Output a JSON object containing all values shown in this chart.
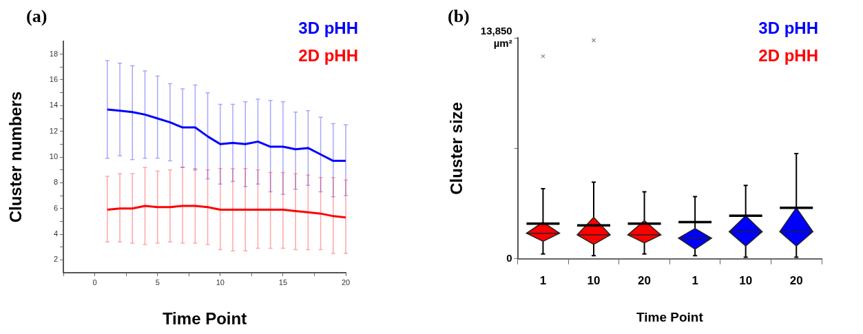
{
  "chart_data": [
    {
      "type": "line",
      "title": "(a)",
      "xlabel": "Time Point",
      "ylabel": "Cluster numbers",
      "x": [
        1,
        2,
        3,
        4,
        5,
        6,
        7,
        8,
        9,
        10,
        11,
        12,
        13,
        14,
        15,
        16,
        17,
        18,
        19,
        20
      ],
      "xlim": [
        -2.5,
        20
      ],
      "xticks": [
        {
          "value": -2.5,
          "label": null
        },
        0,
        {
          "value": 2.5,
          "label": null
        },
        5,
        {
          "value": 7.5,
          "label": null
        },
        10,
        {
          "value": 12.5,
          "label": null
        },
        15,
        {
          "value": 17.5,
          "label": null
        },
        20
      ],
      "ylim": [
        1,
        19
      ],
      "yticks": [
        2,
        {
          "value": 3,
          "label": null
        },
        4,
        {
          "value": 5,
          "label": null
        },
        6,
        {
          "value": 7,
          "label": null
        },
        8,
        {
          "value": 9,
          "label": null
        },
        10,
        {
          "value": 11,
          "label": null
        },
        12,
        {
          "value": 13,
          "label": null
        },
        14,
        {
          "value": 15,
          "label": null
        },
        16,
        {
          "value": 17,
          "label": null
        },
        18
      ],
      "grid": false,
      "legend": "top right",
      "marker": "none",
      "line_style": "solid",
      "series": [
        {
          "name": "3D pHH",
          "color": "#0000ff",
          "values": [
            13.7,
            13.6,
            13.5,
            13.3,
            13.0,
            12.7,
            12.3,
            12.3,
            11.6,
            11.0,
            11.1,
            11.0,
            11.2,
            10.8,
            10.8,
            10.6,
            10.7,
            10.2,
            9.7,
            9.7
          ],
          "errors": [
            [
              9.9,
              17.5
            ],
            [
              10.1,
              17.3
            ],
            [
              9.8,
              17.1
            ],
            [
              9.9,
              16.7
            ],
            [
              9.9,
              16.3
            ],
            [
              9.7,
              15.7
            ],
            [
              9.2,
              15.3
            ],
            [
              9.0,
              15.6
            ],
            [
              8.3,
              15.0
            ],
            [
              7.9,
              14.1
            ],
            [
              8.1,
              14.1
            ],
            [
              7.7,
              14.3
            ],
            [
              7.9,
              14.5
            ],
            [
              7.3,
              14.4
            ],
            [
              7.1,
              14.3
            ],
            [
              7.5,
              13.5
            ],
            [
              7.8,
              13.6
            ],
            [
              7.3,
              13.1
            ],
            [
              6.9,
              12.6
            ],
            [
              7.0,
              12.5
            ]
          ]
        },
        {
          "name": "2D pHH",
          "color": "#ff0000",
          "values": [
            5.9,
            6.0,
            6.0,
            6.2,
            6.1,
            6.1,
            6.2,
            6.2,
            6.1,
            5.9,
            5.9,
            5.9,
            5.9,
            5.9,
            5.9,
            5.8,
            5.7,
            5.6,
            5.4,
            5.3
          ],
          "errors": [
            [
              3.4,
              8.5
            ],
            [
              3.4,
              8.7
            ],
            [
              3.3,
              8.7
            ],
            [
              3.2,
              9.2
            ],
            [
              3.3,
              8.9
            ],
            [
              3.4,
              9.0
            ],
            [
              3.3,
              9.2
            ],
            [
              3.3,
              9.1
            ],
            [
              3.2,
              9.0
            ],
            [
              2.8,
              9.1
            ],
            [
              2.7,
              9.1
            ],
            [
              2.7,
              9.1
            ],
            [
              2.9,
              9.0
            ],
            [
              2.9,
              8.8
            ],
            [
              2.9,
              8.8
            ],
            [
              2.8,
              8.7
            ],
            [
              2.8,
              8.6
            ],
            [
              2.8,
              8.4
            ],
            [
              2.5,
              8.4
            ],
            [
              2.5,
              8.2
            ]
          ]
        }
      ]
    },
    {
      "type": "box",
      "title": "(b)",
      "xlabel": "Time Point",
      "ylabel": "Cluster size",
      "categories": [
        "1",
        "10",
        "20",
        "1",
        "10",
        "20"
      ],
      "ylim": [
        0,
        13850
      ],
      "yticks": [
        0,
        {
          "value": 6925,
          "label": null
        },
        {
          "value": 13850,
          "label": "13,850 µm²"
        }
      ],
      "grid": false,
      "legend": "top right",
      "series": [
        {
          "name": "3D pHH",
          "color": "#0000ff",
          "boxes": [
            null,
            null,
            null,
            {
              "low": 200,
              "q1": 600,
              "median": 1300,
              "q3": 1900,
              "high": 3900,
              "mean": 2300
            },
            {
              "low": 100,
              "q1": 800,
              "median": 1700,
              "q3": 2700,
              "high": 4600,
              "mean": 2700
            },
            {
              "low": 100,
              "q1": 800,
              "median": 1700,
              "q3": 3200,
              "high": 6600,
              "mean": 3200
            }
          ]
        },
        {
          "name": "2D pHH",
          "color": "#ff0000",
          "boxes": [
            {
              "low": 300,
              "q1": 1100,
              "median": 1600,
              "q3": 2300,
              "high": 4400,
              "mean": 2200,
              "outliers": [
                12700
              ]
            },
            {
              "low": 200,
              "q1": 900,
              "median": 1500,
              "q3": 2600,
              "high": 4800,
              "mean": 2100,
              "outliers": [
                13700
              ]
            },
            {
              "low": 300,
              "q1": 1000,
              "median": 1500,
              "q3": 2400,
              "high": 4200,
              "mean": 2200
            },
            null,
            null,
            null
          ]
        }
      ]
    }
  ]
}
